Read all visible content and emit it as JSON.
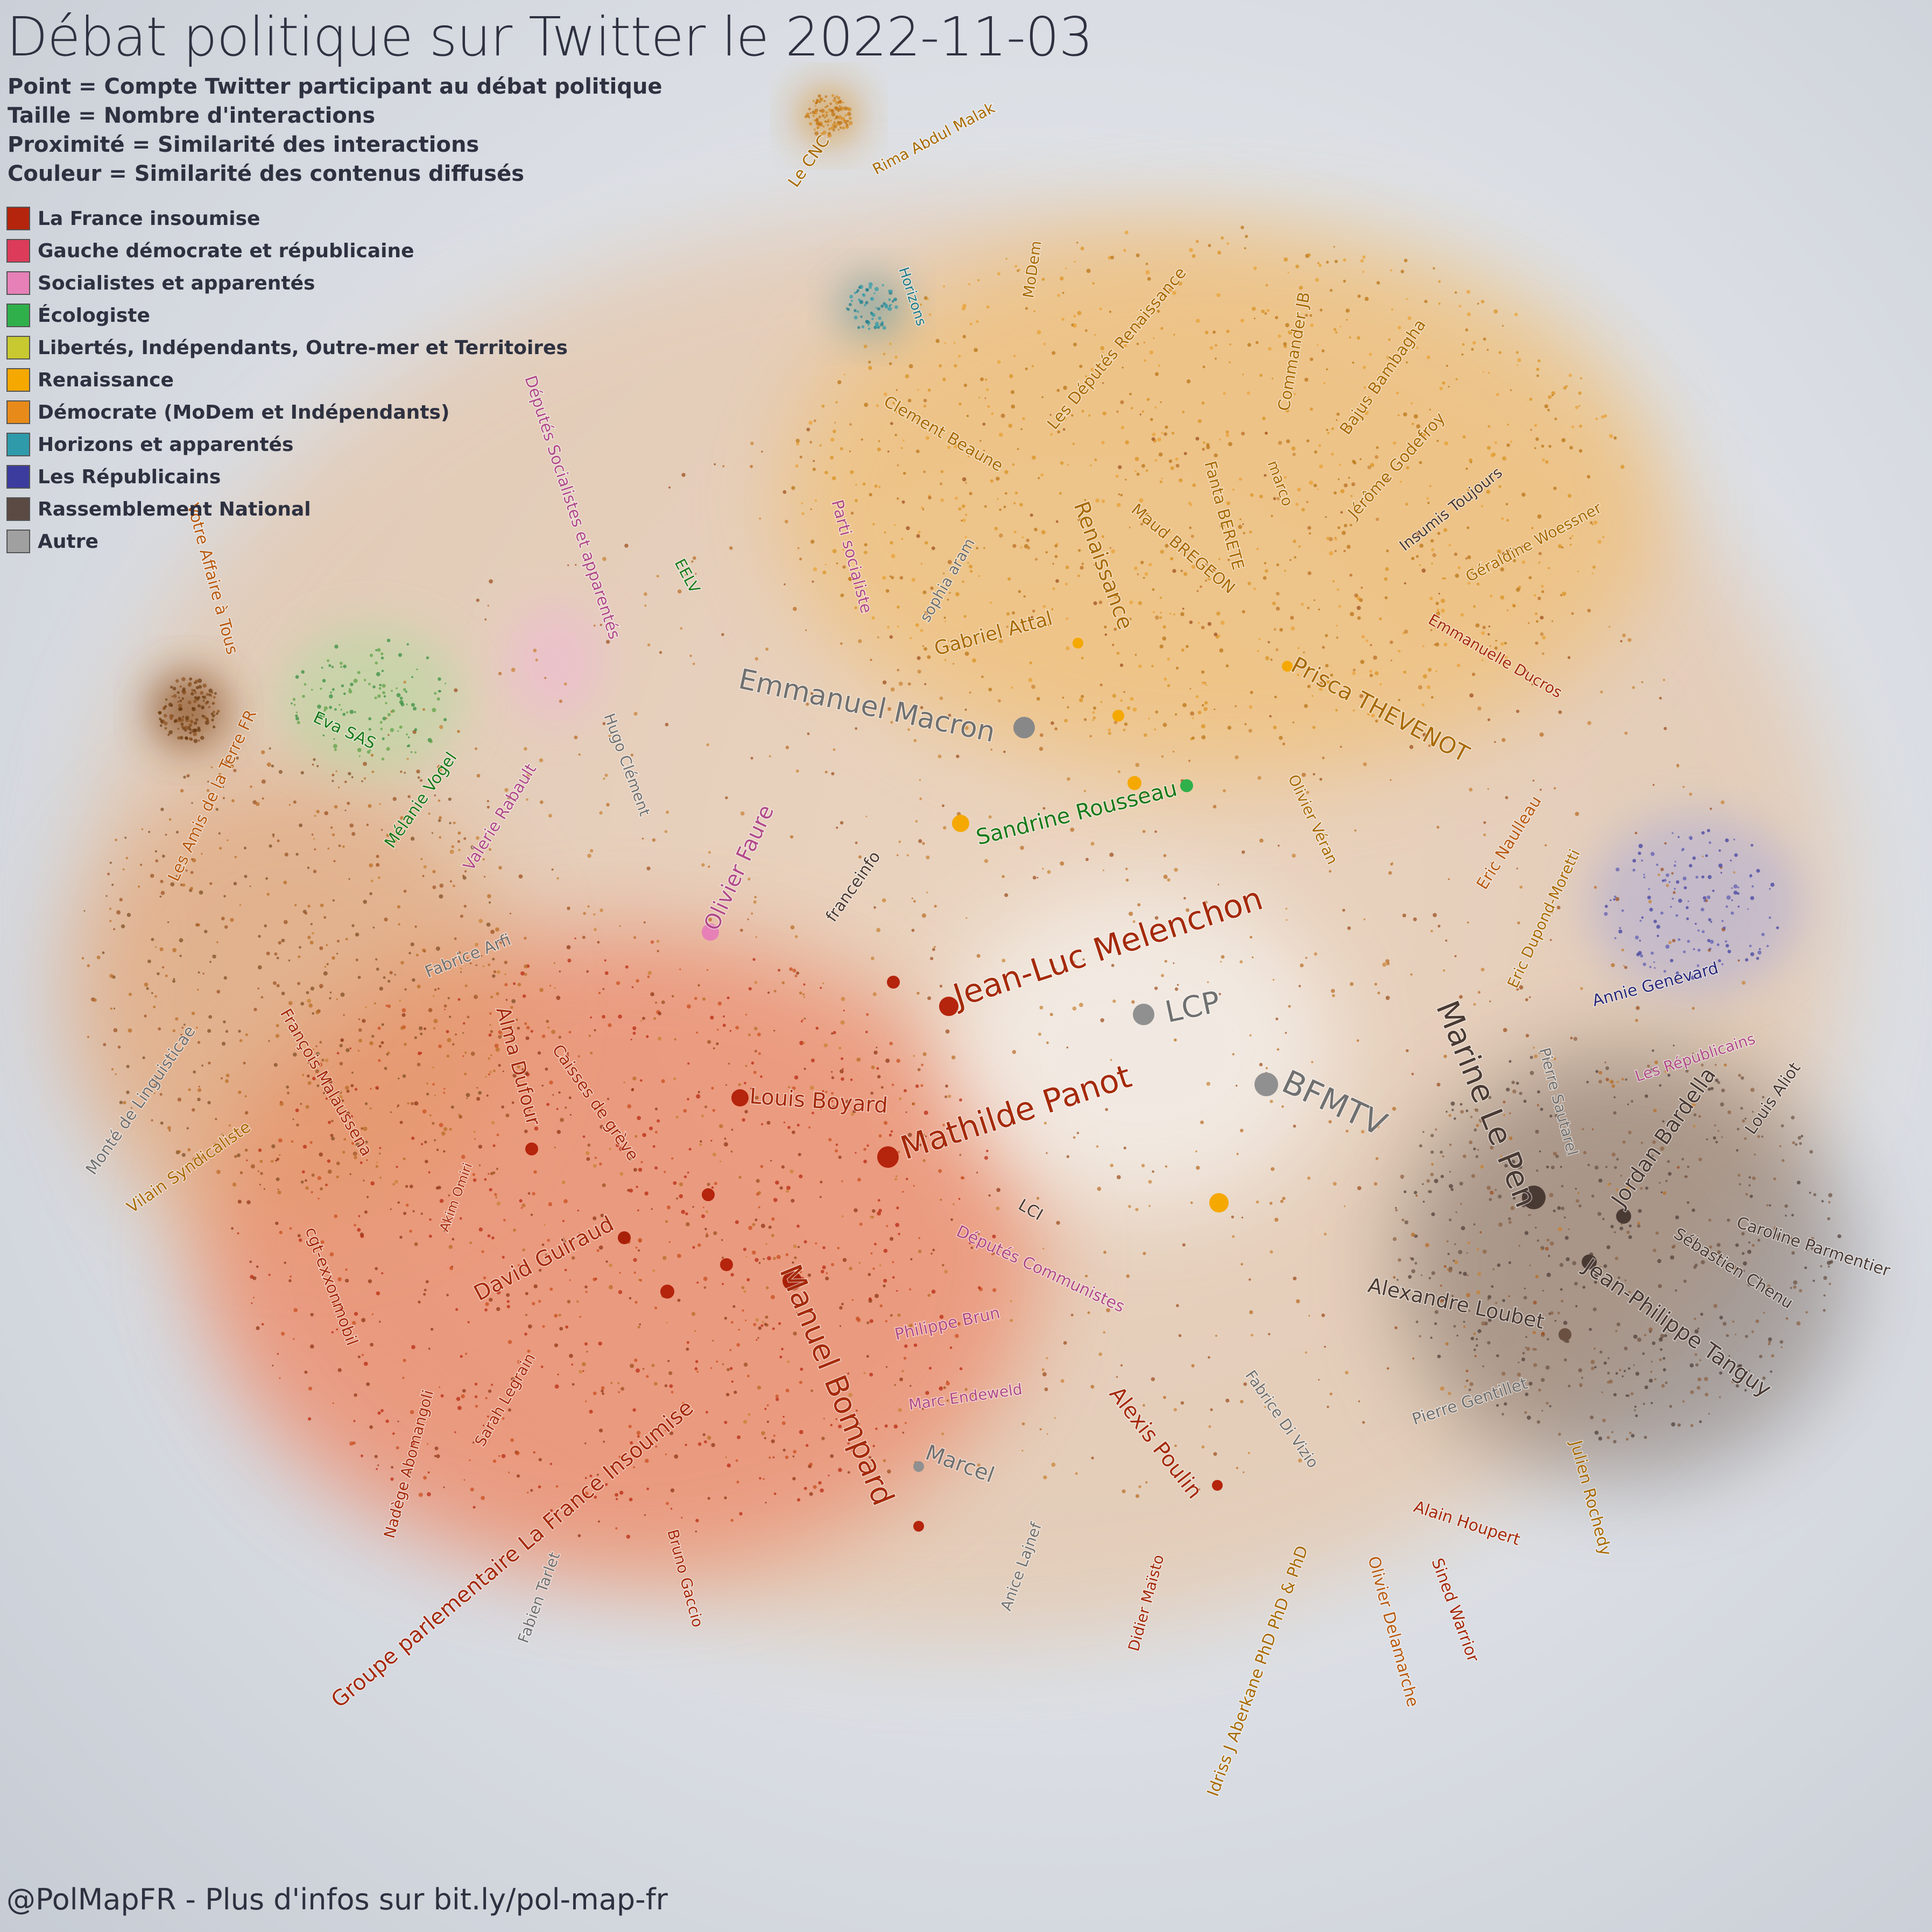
{
  "title": "Débat politique sur Twitter le 2022-11-03",
  "subtitle_lines": [
    "Point = Compte Twitter participant au débat politique",
    "Taille = Nombre d'interactions",
    "Proximité = Similarité des interactions",
    "Couleur = Similarité des contenus diffusés"
  ],
  "legend": [
    {
      "label": "La France insoumise",
      "color": "#b5240c"
    },
    {
      "label": "Gauche démocrate et républicaine",
      "color": "#dc3b5a"
    },
    {
      "label": "Socialistes et apparentés",
      "color": "#e680b7"
    },
    {
      "label": "Écologiste",
      "color": "#2fb04a"
    },
    {
      "label": "Libertés, Indépendants, Outre-mer et Territoires",
      "color": "#c8c830"
    },
    {
      "label": "Renaissance",
      "color": "#f5a800"
    },
    {
      "label": "Démocrate (MoDem et Indépendants)",
      "color": "#e88a1a"
    },
    {
      "label": "Horizons et apparentés",
      "color": "#2e9aaa"
    },
    {
      "label": "Les Républicains",
      "color": "#3b3c9e"
    },
    {
      "label": "Rassemblement National",
      "color": "#5b4a44"
    },
    {
      "label": "Autre",
      "color": "#a0a0a0"
    }
  ],
  "footer": "@PolMapFR - Plus d'infos sur bit.ly/pol-map-fr",
  "colors": {
    "lfi_label": "#a52a0a",
    "renaissance_label": "#a86a00",
    "socialist_label": "#b04a8a",
    "ecolo_label": "#1a7a1a",
    "rn_label": "#4a3a34",
    "lr_label": "#2a2a7a",
    "horizons_label": "#1a7a8a",
    "autre_label": "#707070",
    "orange_label": "#b85a10"
  },
  "nodes": [
    {
      "label": "Le CNC",
      "color": "renaissance_label"
    },
    {
      "label": "Rima Abdul Malak",
      "color": "renaissance_label"
    },
    {
      "label": "MoDem",
      "color": "renaissance_label"
    },
    {
      "label": "Horizons",
      "color": "horizons_label"
    },
    {
      "label": "Les Députés Renaissance",
      "color": "renaissance_label"
    },
    {
      "label": "Commander JB",
      "color": "renaissance_label"
    },
    {
      "label": "Bajus Bambagha",
      "color": "renaissance_label"
    },
    {
      "label": "Clement Beaune",
      "color": "renaissance_label"
    },
    {
      "label": "Fanta BERETE",
      "color": "renaissance_label"
    },
    {
      "label": "marco",
      "color": "renaissance_label"
    },
    {
      "label": "Jérôme Godefroy",
      "color": "renaissance_label"
    },
    {
      "label": "Insumis Toujours",
      "color": "rn_label"
    },
    {
      "label": "Maud BREGEON",
      "color": "renaissance_label"
    },
    {
      "label": "Renaissance",
      "color": "renaissance_label"
    },
    {
      "label": "Géraldine Woessner",
      "color": "renaissance_label"
    },
    {
      "label": "Députés Socialistes et apparentés",
      "color": "socialist_label"
    },
    {
      "label": "Parti socialiste",
      "color": "socialist_label"
    },
    {
      "label": "sophia aram",
      "color": "autre_label"
    },
    {
      "label": "EELV",
      "color": "ecolo_label"
    },
    {
      "label": "Votre Affaire à Tous",
      "color": "orange_label"
    },
    {
      "label": "Gabriel Attal",
      "color": "renaissance_label"
    },
    {
      "label": "Emmanuelle Ducros",
      "color": "lfi_label"
    },
    {
      "label": "Emmanuel Macron",
      "color": "autre_label"
    },
    {
      "label": "Prisca THEVENOT",
      "color": "renaissance_label"
    },
    {
      "label": "Eva SAS",
      "color": "ecolo_label"
    },
    {
      "label": "Hugo Clément",
      "color": "autre_label"
    },
    {
      "label": "Les Amis de la Terre FR",
      "color": "orange_label"
    },
    {
      "label": "Mélanie Vogel",
      "color": "ecolo_label"
    },
    {
      "label": "Valerie Rabault",
      "color": "socialist_label"
    },
    {
      "label": "Olivier Faure",
      "color": "socialist_label"
    },
    {
      "label": "Sandrine Rousseau",
      "color": "ecolo_label"
    },
    {
      "label": "Olivier Véran",
      "color": "renaissance_label"
    },
    {
      "label": "Eric Naulleau",
      "color": "orange_label"
    },
    {
      "label": "Eric Dupond-Moretti",
      "color": "renaissance_label"
    },
    {
      "label": "franceinfo",
      "color": "rn_label"
    },
    {
      "label": "Jean-Luc Melenchon",
      "color": "lfi_label"
    },
    {
      "label": "Annie Genevard",
      "color": "lr_label"
    },
    {
      "label": "Fabrice Arfi",
      "color": "autre_label"
    },
    {
      "label": "LCP",
      "color": "autre_label"
    },
    {
      "label": "Les Républicains",
      "color": "socialist_label"
    },
    {
      "label": "Marine Le Pen",
      "color": "rn_label"
    },
    {
      "label": "Monté de Linguisticae",
      "color": "autre_label"
    },
    {
      "label": "François Malaussena",
      "color": "lfi_label"
    },
    {
      "label": "Alma Dufour",
      "color": "lfi_label"
    },
    {
      "label": "Caisses de grève",
      "color": "lfi_label"
    },
    {
      "label": "Louis Boyard",
      "color": "lfi_label"
    },
    {
      "label": "Pierre Sautarel",
      "color": "autre_label"
    },
    {
      "label": "Louis Aliot",
      "color": "rn_label"
    },
    {
      "label": "Mathilde Panot",
      "color": "lfi_label"
    },
    {
      "label": "BFMTV",
      "color": "autre_label"
    },
    {
      "label": "Jordan Bardella",
      "color": "rn_label"
    },
    {
      "label": "Vilain Syndicaliste",
      "color": "renaissance_label"
    },
    {
      "label": "Akim Omiri",
      "color": "lfi_label"
    },
    {
      "label": "LCI",
      "color": "rn_label"
    },
    {
      "label": "Caroline Parmentier",
      "color": "rn_label"
    },
    {
      "label": "cgt-exxonmobil",
      "color": "lfi_label"
    },
    {
      "label": "Députés Communistes",
      "color": "socialist_label"
    },
    {
      "label": "Sébastien Chenu",
      "color": "rn_label"
    },
    {
      "label": "David Guiraud",
      "color": "lfi_label"
    },
    {
      "label": "Manuel Bompard",
      "color": "lfi_label"
    },
    {
      "label": "Alexandre Loubet",
      "color": "rn_label"
    },
    {
      "label": "Philippe Brun",
      "color": "socialist_label"
    },
    {
      "label": "Jean-Philippe Tanguy",
      "color": "rn_label"
    },
    {
      "label": "Sarah Legrain",
      "color": "lfi_label"
    },
    {
      "label": "Groupe parlementaire La France Insoumise",
      "color": "lfi_label"
    },
    {
      "label": "Marc Endeweld",
      "color": "socialist_label"
    },
    {
      "label": "Fabrice Di Vizio",
      "color": "autre_label"
    },
    {
      "label": "Nadège Abomangoli",
      "color": "lfi_label"
    },
    {
      "label": "Alexis Poulin",
      "color": "lfi_label"
    },
    {
      "label": "Pierre Gentillet",
      "color": "autre_label"
    },
    {
      "label": "Julien Rochedy",
      "color": "renaissance_label"
    },
    {
      "label": "Marcel",
      "color": "autre_label"
    },
    {
      "label": "Alain Houpert",
      "color": "lfi_label"
    },
    {
      "label": "Anice Lajnef",
      "color": "autre_label"
    },
    {
      "label": "Fabien Tarlet",
      "color": "autre_label"
    },
    {
      "label": "Bruno Gaccio",
      "color": "lfi_label"
    },
    {
      "label": "Didier Maïsto",
      "color": "lfi_label"
    },
    {
      "label": "Idriss J Aberkane PhD PhD & PhD",
      "color": "renaissance_label"
    },
    {
      "label": "Olivier Delamarche",
      "color": "orange_label"
    },
    {
      "label": "Sined Warrior",
      "color": "lfi_label"
    }
  ]
}
